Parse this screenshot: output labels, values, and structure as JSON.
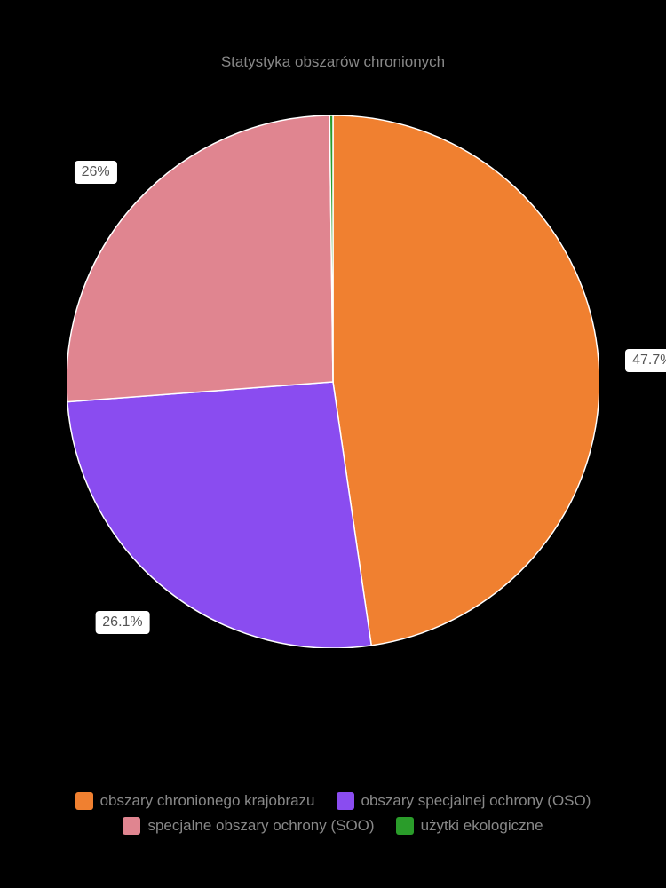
{
  "chart": {
    "type": "pie",
    "title": "Statystyka obszarów chronionych",
    "title_fontsize": 17,
    "title_color": "#888888",
    "background_color": "#000000",
    "radius": 300,
    "slice_stroke": "#ffffff",
    "slice_stroke_width": 1.5,
    "slices": [
      {
        "key": "obszary_chronionego_krajobrazu",
        "label": "obszary chronionego krajobrazu",
        "value": 47.7,
        "color": "#f08030",
        "show_label": true,
        "display": "47.7%"
      },
      {
        "key": "obszary_specjalnej_ochrony",
        "label": "obszary specjalnej ochrony (OSO)",
        "value": 26.1,
        "color": "#8a4cf0",
        "show_label": true,
        "display": "26.1%"
      },
      {
        "key": "specjalne_obszary_ochrony",
        "label": "specjalne obszary ochrony (SOO)",
        "value": 26.0,
        "color": "#e08590",
        "show_label": true,
        "display": "26%"
      },
      {
        "key": "uzytki_ekologiczne",
        "label": "użytki ekologiczne",
        "value": 0.2,
        "color": "#2a9c2a",
        "show_label": false,
        "display": "0.2%"
      }
    ],
    "label_style": {
      "background": "#ffffff",
      "fontsize": 16,
      "color": "#555555",
      "border_radius": 4,
      "offset_factor": 1.1
    },
    "legend": {
      "label_color": "#888888",
      "label_fontsize": 17,
      "swatch_size": 20
    }
  }
}
